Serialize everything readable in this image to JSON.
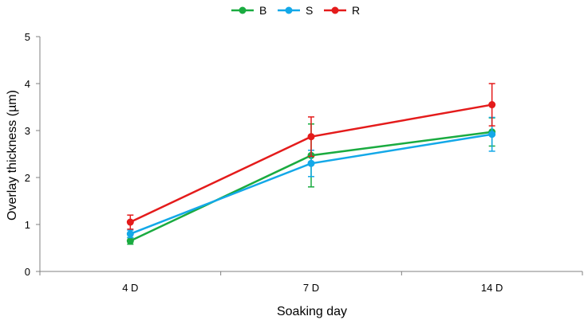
{
  "chart_data": {
    "type": "line",
    "title": "",
    "xlabel": "Soaking day",
    "ylabel": "Overlay thickness (µm)",
    "categories": [
      "4 D",
      "7 D",
      "14 D"
    ],
    "ylim": [
      0,
      5
    ],
    "yticks": [
      "0",
      "1",
      "2",
      "3",
      "4",
      "5"
    ],
    "grid": false,
    "legend_position": "top-center",
    "series": [
      {
        "name": "B",
        "color": "#1aab40",
        "values": [
          0.65,
          2.47,
          2.97
        ],
        "errors": [
          0.07,
          0.67,
          0.3
        ]
      },
      {
        "name": "S",
        "color": "#13a8e8",
        "values": [
          0.8,
          2.3,
          2.92
        ],
        "errors": [
          0.08,
          0.28,
          0.36
        ]
      },
      {
        "name": "R",
        "color": "#e41b1b",
        "values": [
          1.05,
          2.87,
          3.55
        ],
        "errors": [
          0.15,
          0.42,
          0.45
        ]
      }
    ]
  }
}
